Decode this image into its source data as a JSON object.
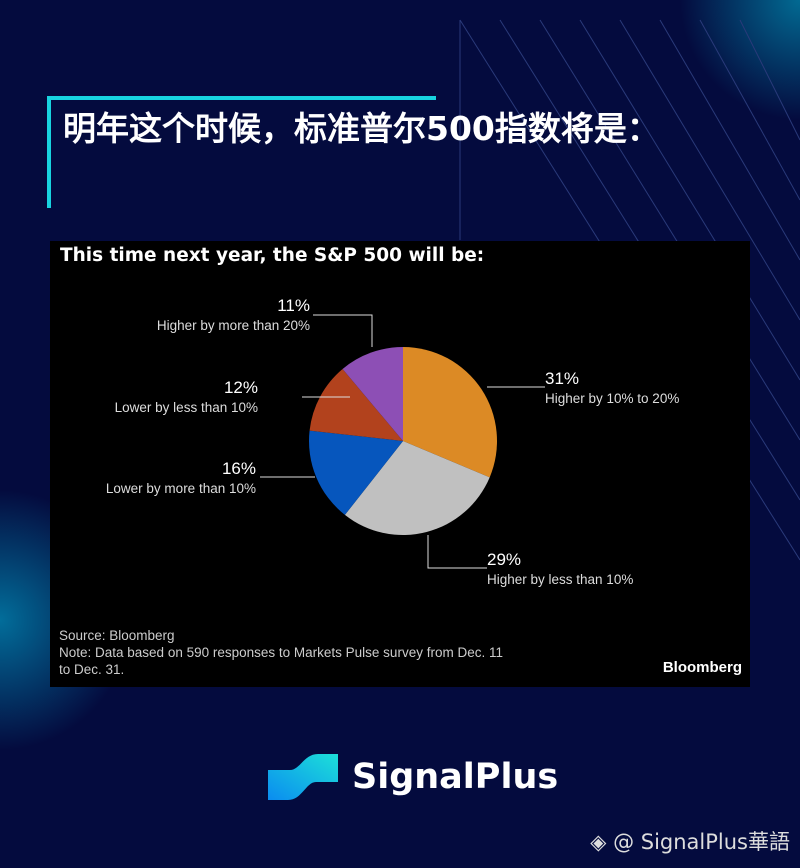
{
  "header": {
    "title": "明年这个时候，标准普尔500指数将是："
  },
  "chart_data": {
    "type": "pie",
    "title": "This time next year, the S&P 500 will be:",
    "slices": [
      {
        "label": "Higher by 10% to 20%",
        "value": 31,
        "value_label": "31%",
        "color": "#dc8a25"
      },
      {
        "label": "Higher by less than 10%",
        "value": 29,
        "value_label": "29%",
        "color": "#c0c0c0"
      },
      {
        "label": "Lower by more than 10%",
        "value": 16,
        "value_label": "16%",
        "color": "#0656bd"
      },
      {
        "label": "Lower by less than 10%",
        "value": 12,
        "value_label": "12%",
        "color": "#b2421d"
      },
      {
        "label": "Higher by more than 20%",
        "value": 11,
        "value_label": "11%",
        "color": "#8d4fb5"
      }
    ],
    "source": "Source: Bloomberg",
    "note": "Note: Data based on 590 responses to Markets Pulse survey from Dec. 11",
    "note2": "to Dec. 31.",
    "brand": "Bloomberg"
  },
  "footer": {
    "logo": "SignalPlus",
    "watermark": "@ SignalPlus華語"
  }
}
